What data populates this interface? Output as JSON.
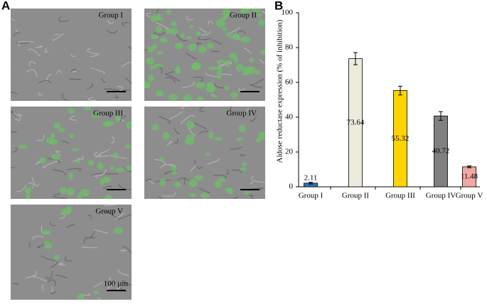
{
  "panel_labels": [
    "A",
    "B"
  ],
  "images": [
    {
      "label": "Group I"
    },
    {
      "label": "Group II"
    },
    {
      "label": "Group III"
    },
    {
      "label": "Group IV"
    },
    {
      "label": "Group V"
    }
  ],
  "scale_bar_label": "100 µm",
  "chart_data": {
    "type": "bar",
    "y_label": "Aldose reductase expression (% of inhibition)",
    "categories": [
      "Group I",
      "Group II",
      "Group III",
      "Group IV",
      "Group V"
    ],
    "values": [
      2.11,
      73.64,
      55.32,
      40.72,
      11.48
    ],
    "errors": [
      0.5,
      3.5,
      2.5,
      2.5,
      0.5
    ],
    "colors": [
      "#2a74b4",
      "#ecebdc",
      "#ffd200",
      "#808080",
      "#f2a7a2"
    ],
    "ylim": [
      0,
      100
    ],
    "yticks": [
      0,
      20,
      40,
      60,
      80,
      100
    ]
  }
}
